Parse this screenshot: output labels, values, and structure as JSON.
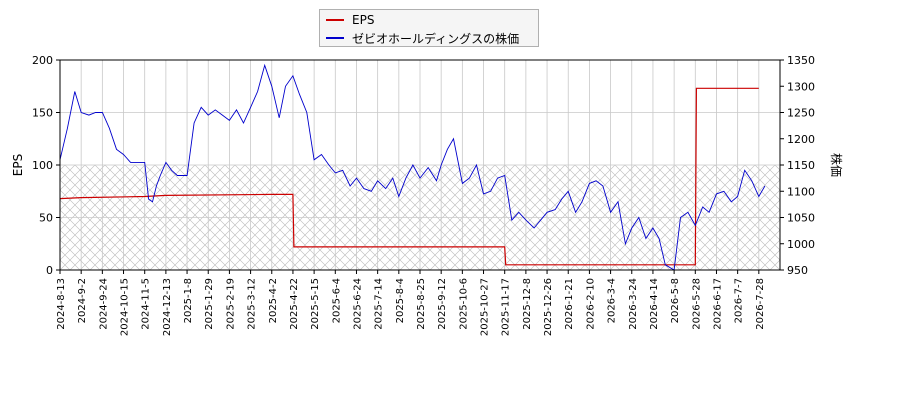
{
  "colors": {
    "eps": "#cc0000",
    "price": "#0000cc",
    "hatch": "#b8b8b8",
    "grid": "#c8c8c8"
  },
  "chart_data": {
    "type": "line",
    "title": "",
    "grid": true,
    "legend_placement": "top-center",
    "x_ticks": [
      "2024-8-13",
      "2024-9-2",
      "2024-9-24",
      "2024-10-15",
      "2024-11-5",
      "2024-12-13",
      "2025-1-8",
      "2025-1-29",
      "2025-2-19",
      "2025-3-12",
      "2025-4-2",
      "2025-4-22",
      "2025-5-15",
      "2025-6-4",
      "2025-6-24",
      "2025-7-14",
      "2025-8-4",
      "2025-8-25",
      "2025-9-12",
      "2025-10-6",
      "2025-10-27",
      "2025-11-17",
      "2025-12-8",
      "2025-12-26",
      "2026-1-21",
      "2026-2-10",
      "2026-3-4",
      "2026-3-24",
      "2026-4-14",
      "2026-5-8",
      "2026-5-28",
      "2026-6-17",
      "2026-7-7",
      "2026-7-28"
    ],
    "y_left": {
      "label": "EPS",
      "ticks": [
        0,
        50,
        100,
        150,
        200
      ],
      "range": [
        0,
        200
      ]
    },
    "y_right": {
      "label": "株価",
      "ticks": [
        950,
        1000,
        1050,
        1100,
        1150,
        1200,
        1250,
        1300,
        1350
      ],
      "range": [
        950,
        1350
      ]
    },
    "series": [
      {
        "name": "EPS",
        "axis": "left",
        "x": [
          "2024-8-13",
          "2024-9-2",
          "2024-11-5",
          "2024-12-13",
          "2025-4-2",
          "2025-4-22",
          "2025-4-23",
          "2025-11-17",
          "2025-11-18",
          "2026-5-28",
          "2026-5-29",
          "2026-7-28"
        ],
        "values": [
          68,
          69,
          70,
          71,
          72,
          72,
          22,
          22,
          5,
          5,
          173,
          173
        ]
      },
      {
        "name": "ゼビオホールディングスの株価",
        "axis": "right",
        "x": [
          "2024-8-13",
          "2024-8-20",
          "2024-8-27",
          "2024-9-2",
          "2024-9-10",
          "2024-9-17",
          "2024-9-24",
          "2024-10-1",
          "2024-10-8",
          "2024-10-15",
          "2024-10-22",
          "2024-10-29",
          "2024-11-5",
          "2024-11-12",
          "2024-11-19",
          "2024-11-26",
          "2024-12-3",
          "2024-12-13",
          "2024-12-20",
          "2024-12-27",
          "2025-1-8",
          "2025-1-15",
          "2025-1-22",
          "2025-1-29",
          "2025-2-5",
          "2025-2-12",
          "2025-2-19",
          "2025-2-26",
          "2025-3-5",
          "2025-3-12",
          "2025-3-19",
          "2025-3-26",
          "2025-4-2",
          "2025-4-9",
          "2025-4-15",
          "2025-4-22",
          "2025-4-29",
          "2025-5-7",
          "2025-5-15",
          "2025-5-22",
          "2025-5-29",
          "2025-6-4",
          "2025-6-11",
          "2025-6-18",
          "2025-6-24",
          "2025-7-1",
          "2025-7-8",
          "2025-7-14",
          "2025-7-22",
          "2025-7-29",
          "2025-8-4",
          "2025-8-11",
          "2025-8-18",
          "2025-8-25",
          "2025-9-1",
          "2025-9-8",
          "2025-9-12",
          "2025-9-19",
          "2025-9-26",
          "2025-10-6",
          "2025-10-13",
          "2025-10-20",
          "2025-10-27",
          "2025-11-3",
          "2025-11-10",
          "2025-11-17",
          "2025-11-24",
          "2025-12-1",
          "2025-12-8",
          "2025-12-15",
          "2025-12-26",
          "2026-1-5",
          "2026-1-13",
          "2026-1-21",
          "2026-1-28",
          "2026-2-3",
          "2026-2-10",
          "2026-2-17",
          "2026-2-24",
          "2026-3-4",
          "2026-3-11",
          "2026-3-18",
          "2026-3-24",
          "2026-3-31",
          "2026-4-7",
          "2026-4-14",
          "2026-4-21",
          "2026-4-28",
          "2026-5-8",
          "2026-5-14",
          "2026-5-21",
          "2026-5-28",
          "2026-6-4",
          "2026-6-10",
          "2026-6-17",
          "2026-6-24",
          "2026-7-1",
          "2026-7-7",
          "2026-7-14",
          "2026-7-21",
          "2026-7-28",
          "2026-8-3"
        ],
        "values": [
          1160,
          1220,
          1290,
          1250,
          1245,
          1250,
          1250,
          1220,
          1180,
          1170,
          1155,
          1155,
          1155,
          1085,
          1080,
          1110,
          1130,
          1155,
          1140,
          1130,
          1130,
          1230,
          1260,
          1245,
          1255,
          1245,
          1235,
          1255,
          1230,
          1260,
          1290,
          1340,
          1300,
          1240,
          1300,
          1320,
          1285,
          1250,
          1160,
          1170,
          1150,
          1135,
          1140,
          1110,
          1125,
          1105,
          1100,
          1120,
          1105,
          1125,
          1090,
          1125,
          1150,
          1125,
          1145,
          1120,
          1150,
          1180,
          1200,
          1115,
          1125,
          1150,
          1095,
          1100,
          1125,
          1130,
          1045,
          1060,
          1045,
          1030,
          1060,
          1065,
          1085,
          1100,
          1060,
          1080,
          1115,
          1120,
          1110,
          1060,
          1080,
          1000,
          1030,
          1050,
          1010,
          1030,
          1010,
          960,
          950,
          1050,
          1060,
          1035,
          1070,
          1060,
          1095,
          1100,
          1080,
          1090,
          1140,
          1120,
          1090,
          1110
        ]
      }
    ]
  }
}
